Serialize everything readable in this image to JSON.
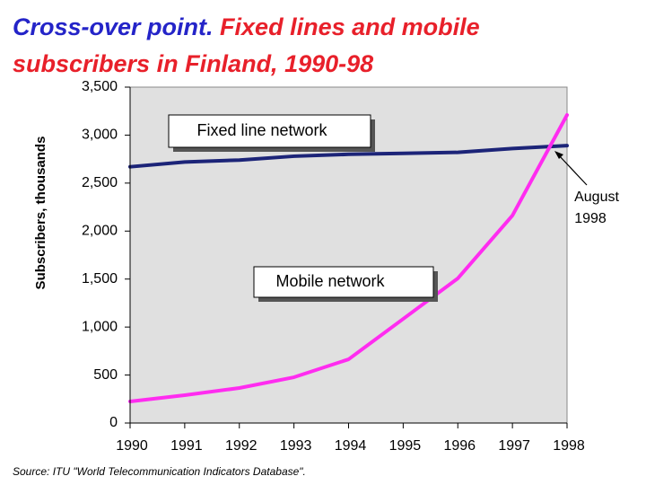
{
  "chart_data": {
    "type": "line",
    "title": [
      "Cross-over point.",
      "Fixed lines and mobile",
      "subscribers in Finland, 1990-98"
    ],
    "title_colors": [
      "#2424c8",
      "#e8202a"
    ],
    "y_label": "Subscribers, thousands",
    "source": "Source:  ITU \"World Telecommunication Indicators Database\".",
    "annotation": [
      "August",
      "1998"
    ],
    "x": [
      1990,
      1991,
      1992,
      1993,
      1994,
      1995,
      1996,
      1997,
      1998
    ],
    "xlim": [
      1990,
      1998
    ],
    "xticks": [
      1990,
      1991,
      1992,
      1993,
      1994,
      1995,
      1996,
      1997,
      1998
    ],
    "ylim": [
      0,
      3500
    ],
    "yticks": [
      0,
      500,
      {
        "value": 1000,
        "label": "1,000"
      },
      {
        "value": 1500,
        "label": "1,500"
      },
      {
        "value": 2000,
        "label": "2,000"
      },
      {
        "value": 2500,
        "label": "2,500"
      },
      {
        "value": 3000,
        "label": "3,000"
      },
      {
        "value": 3500,
        "label": "3,500"
      }
    ],
    "series": [
      {
        "name": "Fixed line network",
        "color": "#1c2478",
        "values": [
          2670,
          2720,
          2740,
          2780,
          2800,
          2810,
          2820,
          2860,
          2890
        ]
      },
      {
        "name": "Mobile network",
        "color": "#ff2cf0",
        "values": [
          225,
          290,
          365,
          477,
          664,
          1085,
          1507,
          2162,
          3210
        ]
      }
    ]
  }
}
